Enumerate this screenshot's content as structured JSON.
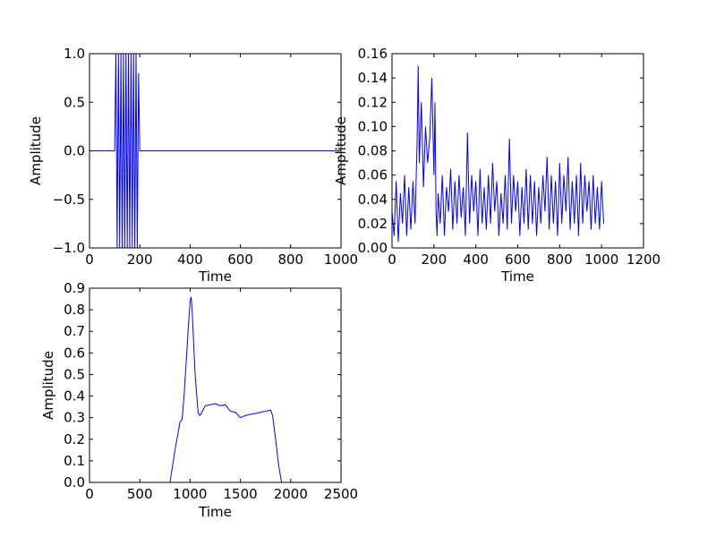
{
  "chart_data": [
    {
      "id": "top-left",
      "type": "line",
      "title": "",
      "xlabel": "Time",
      "ylabel": "Amplitude",
      "xlim": [
        0,
        1000
      ],
      "ylim": [
        -1.0,
        1.0
      ],
      "xticks": [
        0,
        200,
        400,
        600,
        800,
        1000
      ],
      "xtick_labels": [
        "0",
        "200",
        "400",
        "600",
        "800",
        "1000"
      ],
      "yticks": [
        -1.0,
        -0.5,
        0.0,
        0.5,
        1.0
      ],
      "ytick_labels": [
        "−1.0",
        "−0.5",
        "0.0",
        "0.5",
        "1.0"
      ],
      "grid": false,
      "line_color": "#0000ff",
      "series": [
        {
          "x": [
            0,
            100,
            105,
            110,
            115,
            120,
            125,
            130,
            135,
            140,
            145,
            150,
            155,
            160,
            165,
            170,
            175,
            180,
            185,
            190,
            195,
            200,
            1000
          ],
          "y": [
            0,
            0,
            1.0,
            -1.0,
            1.0,
            -1.0,
            1.0,
            -1.0,
            1.0,
            -1.0,
            1.0,
            -1.0,
            1.0,
            -1.0,
            1.0,
            -1.0,
            1.0,
            -1.0,
            1.0,
            -1.0,
            0.8,
            0,
            0
          ]
        }
      ]
    },
    {
      "id": "top-right",
      "type": "line",
      "title": "",
      "xlabel": "Time",
      "ylabel": "Amplitude",
      "xlim": [
        0,
        1200
      ],
      "ylim": [
        0.0,
        0.16
      ],
      "xticks": [
        0,
        200,
        400,
        600,
        800,
        1000,
        1200
      ],
      "xtick_labels": [
        "0",
        "200",
        "400",
        "600",
        "800",
        "1000",
        "1200"
      ],
      "yticks": [
        0.0,
        0.02,
        0.04,
        0.06,
        0.08,
        0.1,
        0.12,
        0.14,
        0.16
      ],
      "ytick_labels": [
        "0.00",
        "0.02",
        "0.04",
        "0.06",
        "0.08",
        "0.10",
        "0.12",
        "0.14",
        "0.16"
      ],
      "grid": false,
      "line_color": "#0000ff",
      "series": [
        {
          "x": [
            0,
            10,
            20,
            30,
            40,
            50,
            60,
            70,
            80,
            90,
            100,
            110,
            120,
            125,
            130,
            140,
            150,
            160,
            170,
            180,
            190,
            200,
            205,
            210,
            215,
            220,
            230,
            240,
            250,
            260,
            270,
            280,
            290,
            300,
            310,
            320,
            330,
            340,
            350,
            360,
            370,
            380,
            390,
            400,
            410,
            420,
            430,
            440,
            450,
            460,
            470,
            480,
            490,
            500,
            510,
            520,
            530,
            540,
            550,
            560,
            570,
            580,
            590,
            600,
            610,
            620,
            630,
            640,
            650,
            660,
            670,
            680,
            690,
            700,
            710,
            720,
            730,
            740,
            750,
            760,
            770,
            780,
            790,
            800,
            810,
            820,
            830,
            840,
            850,
            860,
            870,
            880,
            890,
            900,
            910,
            920,
            930,
            940,
            950,
            960,
            970,
            980,
            990,
            1000,
            1010
          ],
          "y": [
            0.03,
            0.01,
            0.055,
            0.005,
            0.045,
            0.02,
            0.06,
            0.01,
            0.05,
            0.015,
            0.055,
            0.02,
            0.09,
            0.15,
            0.07,
            0.12,
            0.05,
            0.1,
            0.07,
            0.09,
            0.14,
            0.06,
            0.12,
            0.03,
            0.01,
            0.045,
            0.02,
            0.06,
            0.01,
            0.05,
            0.03,
            0.065,
            0.015,
            0.055,
            0.02,
            0.06,
            0.025,
            0.05,
            0.01,
            0.095,
            0.02,
            0.06,
            0.03,
            0.055,
            0.01,
            0.065,
            0.02,
            0.05,
            0.015,
            0.06,
            0.02,
            0.07,
            0.03,
            0.055,
            0.01,
            0.045,
            0.02,
            0.06,
            0.015,
            0.09,
            0.02,
            0.06,
            0.03,
            0.055,
            0.01,
            0.05,
            0.02,
            0.065,
            0.015,
            0.06,
            0.02,
            0.055,
            0.01,
            0.05,
            0.02,
            0.06,
            0.03,
            0.075,
            0.015,
            0.06,
            0.02,
            0.055,
            0.01,
            0.07,
            0.02,
            0.06,
            0.03,
            0.075,
            0.015,
            0.055,
            0.02,
            0.06,
            0.01,
            0.07,
            0.02,
            0.06,
            0.03,
            0.055,
            0.015,
            0.06,
            0.02,
            0.05,
            0.015,
            0.055,
            0.02
          ]
        }
      ]
    },
    {
      "id": "bottom-left",
      "type": "line",
      "title": "",
      "xlabel": "Time",
      "ylabel": "Amplitude",
      "xlim": [
        0,
        2500
      ],
      "ylim": [
        0.0,
        0.9
      ],
      "xticks": [
        0,
        500,
        1000,
        1500,
        2000,
        2500
      ],
      "xtick_labels": [
        "0",
        "500",
        "1000",
        "1500",
        "2000",
        "2500"
      ],
      "yticks": [
        0.0,
        0.1,
        0.2,
        0.3,
        0.4,
        0.5,
        0.6,
        0.7,
        0.8,
        0.9
      ],
      "ytick_labels": [
        "0.0",
        "0.1",
        "0.2",
        "0.3",
        "0.4",
        "0.5",
        "0.6",
        "0.7",
        "0.8",
        "0.9"
      ],
      "grid": false,
      "line_color": "#0000ff",
      "series": [
        {
          "x": [
            800,
            850,
            900,
            920,
            940,
            960,
            980,
            1000,
            1010,
            1020,
            1050,
            1080,
            1100,
            1150,
            1200,
            1250,
            1300,
            1350,
            1400,
            1450,
            1500,
            1550,
            1600,
            1650,
            1700,
            1750,
            1800,
            1820,
            1850,
            1880,
            1910
          ],
          "y": [
            0.0,
            0.15,
            0.28,
            0.29,
            0.4,
            0.55,
            0.7,
            0.84,
            0.86,
            0.8,
            0.5,
            0.32,
            0.31,
            0.355,
            0.36,
            0.365,
            0.355,
            0.36,
            0.33,
            0.325,
            0.3,
            0.31,
            0.315,
            0.32,
            0.325,
            0.33,
            0.335,
            0.31,
            0.2,
            0.08,
            0.0
          ]
        }
      ]
    }
  ]
}
